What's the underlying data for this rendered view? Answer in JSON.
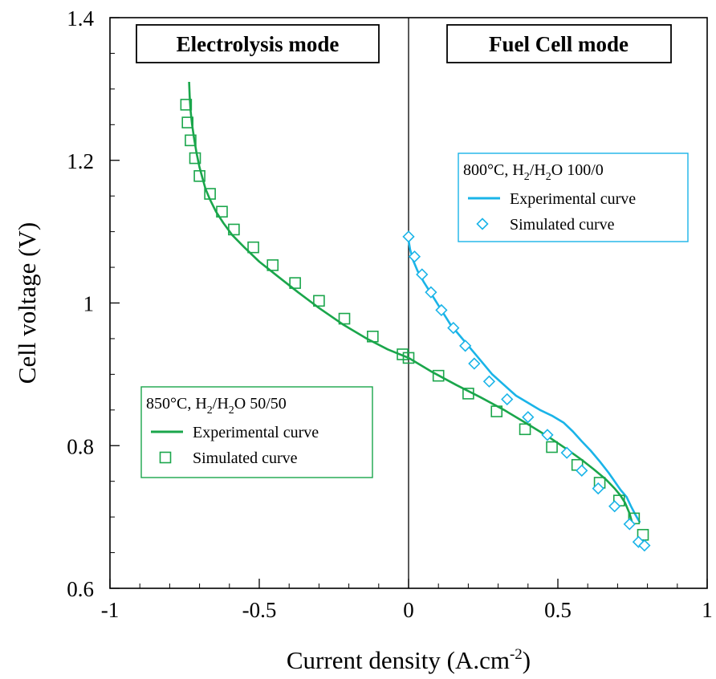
{
  "chart_data": {
    "type": "line",
    "xlabel": "Current density (A.cm",
    "xlabel_sup": "-2",
    "xlabel_close": ")",
    "ylabel": "Cell voltage (V)",
    "xlim": [
      -1,
      1
    ],
    "ylim": [
      0.6,
      1.4
    ],
    "x_ticks": [
      -1,
      -0.5,
      0,
      0.5,
      1
    ],
    "x_tick_labels": [
      "-1",
      "-0.5",
      "0",
      "0.5",
      "1"
    ],
    "y_ticks": [
      0.6,
      0.8,
      1.0,
      1.2,
      1.4
    ],
    "y_tick_labels": [
      "0.6",
      "0.8",
      "1",
      "1.2",
      "1.4"
    ],
    "grid": false,
    "annotations": {
      "left_mode": "Electrolysis mode",
      "right_mode": "Fuel Cell mode"
    },
    "legends": [
      {
        "placement": "bottom-left",
        "title_prefix": "850°C, H",
        "title_sub1": "2",
        "title_mid": "/H",
        "title_sub2": "2",
        "title_suffix": "O 50/50",
        "line_label": "Experimental curve",
        "marker_label": "Simulated curve",
        "color": "#1aa64b"
      },
      {
        "placement": "top-right",
        "title_prefix": "800°C, H",
        "title_sub1": "2",
        "title_mid": "/H",
        "title_sub2": "2",
        "title_suffix": "O 100/0",
        "line_label": "Experimental curve",
        "marker_label": "Simulated curve",
        "color": "#1ab4e8"
      }
    ],
    "series": [
      {
        "kind": "line",
        "group": "850",
        "color": "#1aa64b",
        "x": [
          -0.735,
          -0.733,
          -0.73,
          -0.725,
          -0.718,
          -0.71,
          -0.7,
          -0.69,
          -0.68,
          -0.665,
          -0.645,
          -0.62,
          -0.59,
          -0.55,
          -0.5,
          -0.44,
          -0.37,
          -0.3,
          -0.22,
          -0.14,
          -0.07,
          0.0,
          0.08,
          0.16,
          0.24,
          0.32,
          0.4,
          0.47,
          0.53,
          0.58,
          0.62,
          0.66,
          0.69,
          0.71,
          0.725,
          0.74,
          0.75
        ],
        "y": [
          1.31,
          1.29,
          1.27,
          1.25,
          1.23,
          1.21,
          1.19,
          1.175,
          1.16,
          1.145,
          1.128,
          1.112,
          1.095,
          1.078,
          1.058,
          1.038,
          1.015,
          0.993,
          0.97,
          0.95,
          0.935,
          0.923,
          0.903,
          0.885,
          0.868,
          0.85,
          0.83,
          0.812,
          0.795,
          0.78,
          0.767,
          0.753,
          0.74,
          0.73,
          0.72,
          0.705,
          0.69
        ]
      },
      {
        "kind": "marker",
        "group": "850",
        "marker": "square",
        "color": "#1aa64b",
        "x": [
          -0.745,
          -0.74,
          -0.73,
          -0.715,
          -0.7,
          -0.665,
          -0.625,
          -0.585,
          -0.52,
          -0.455,
          -0.38,
          -0.3,
          -0.215,
          -0.12,
          -0.02,
          0.0,
          0.1,
          0.2,
          0.295,
          0.39,
          0.48,
          0.565,
          0.64,
          0.705,
          0.755,
          0.785
        ],
        "y": [
          1.278,
          1.253,
          1.228,
          1.203,
          1.178,
          1.153,
          1.128,
          1.103,
          1.078,
          1.053,
          1.028,
          1.003,
          0.978,
          0.953,
          0.928,
          0.923,
          0.898,
          0.873,
          0.848,
          0.823,
          0.798,
          0.773,
          0.748,
          0.723,
          0.698,
          0.675
        ]
      },
      {
        "kind": "line",
        "group": "800",
        "color": "#1ab4e8",
        "x": [
          0.0,
          0.005,
          0.015,
          0.03,
          0.05,
          0.08,
          0.11,
          0.14,
          0.17,
          0.2,
          0.24,
          0.28,
          0.32,
          0.36,
          0.4,
          0.44,
          0.48,
          0.52,
          0.55,
          0.58,
          0.61,
          0.64,
          0.67,
          0.69,
          0.71,
          0.73,
          0.745,
          0.76,
          0.775
        ],
        "y": [
          1.088,
          1.075,
          1.06,
          1.045,
          1.03,
          1.01,
          0.99,
          0.97,
          0.955,
          0.94,
          0.92,
          0.9,
          0.885,
          0.87,
          0.86,
          0.85,
          0.842,
          0.832,
          0.82,
          0.806,
          0.793,
          0.778,
          0.762,
          0.75,
          0.738,
          0.728,
          0.715,
          0.703,
          0.692
        ]
      },
      {
        "kind": "marker",
        "group": "800",
        "marker": "diamond",
        "color": "#1ab4e8",
        "x": [
          0.0,
          0.02,
          0.045,
          0.075,
          0.11,
          0.15,
          0.19,
          0.22,
          0.27,
          0.33,
          0.4,
          0.465,
          0.53,
          0.58,
          0.635,
          0.69,
          0.74,
          0.77,
          0.79
        ],
        "y": [
          1.093,
          1.065,
          1.04,
          1.015,
          0.99,
          0.965,
          0.94,
          0.915,
          0.89,
          0.865,
          0.84,
          0.815,
          0.79,
          0.765,
          0.74,
          0.715,
          0.69,
          0.665,
          0.66
        ]
      }
    ]
  }
}
